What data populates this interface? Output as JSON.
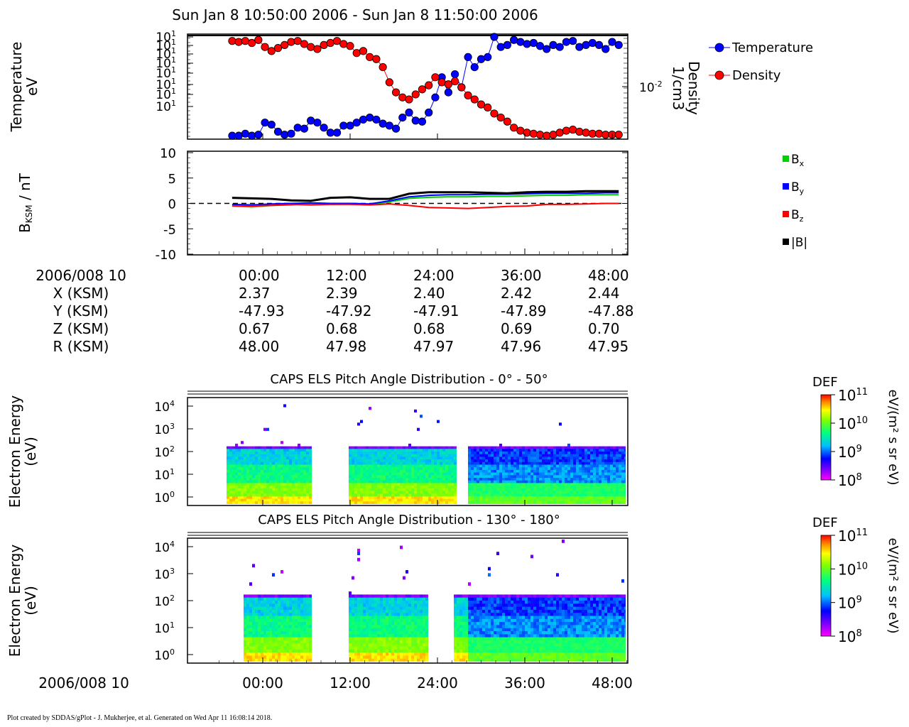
{
  "header": {
    "title": "Sun Jan 8 10:50:00 2006 - Sun Jan 8 11:50:00 2006"
  },
  "footer": {
    "text": "Plot created by SDDAS/gPlot - J. Mukherjee, et al.  Generated on Wed Apr 11 16:08:14 2018."
  },
  "chart_data": [
    {
      "id": "temperature_density",
      "type": "scatter",
      "ylabel": [
        "Temperature",
        "eV"
      ],
      "ylabel_right": [
        "Density",
        "1/cm3"
      ],
      "left_tick_labels": [
        "10",
        "10",
        "10",
        "10",
        "10",
        "10",
        "10",
        "10"
      ],
      "left_tick_exponent": "1",
      "right_tick_label": {
        "base": "10",
        "exp": "-2"
      },
      "legend": [
        {
          "label": "Temperature",
          "color": "#0000ff"
        },
        {
          "label": "Density",
          "color": "#ff0000"
        }
      ],
      "ylim": [
        0,
        100
      ],
      "x": [
        -4.2,
        -3.3,
        -2.4,
        -1.5,
        -0.6,
        0.3,
        1.2,
        2.1,
        3.0,
        3.9,
        4.8,
        5.7,
        6.6,
        7.5,
        8.4,
        9.3,
        10.2,
        11.1,
        12.0,
        12.9,
        13.8,
        14.7,
        15.6,
        16.5,
        17.4,
        18.3,
        19.2,
        20.1,
        21.0,
        21.9,
        22.8,
        23.7,
        24.6,
        25.5,
        26.4,
        27.3,
        28.2,
        29.1,
        30.0,
        30.9,
        31.8,
        32.7,
        33.6,
        34.5,
        35.4,
        36.3,
        37.2,
        38.1,
        39.0,
        39.9,
        40.8,
        41.7,
        42.6,
        43.5,
        44.4,
        45.3,
        46.2,
        47.1,
        48.0,
        48.9
      ],
      "series": [
        {
          "name": "Temperature",
          "color": "#0000ff",
          "values": [
            2,
            2,
            4,
            2,
            3,
            15,
            13,
            6,
            3,
            4,
            10,
            9,
            17,
            15,
            10,
            5,
            5,
            12,
            12,
            15,
            18,
            20,
            18,
            14,
            12,
            9,
            20,
            25,
            17,
            16,
            25,
            40,
            60,
            45,
            63,
            50,
            80,
            70,
            78,
            80,
            100,
            90,
            92,
            97,
            95,
            93,
            94,
            91,
            88,
            92,
            90,
            95,
            96,
            90,
            92,
            94,
            92,
            88,
            95,
            92
          ]
        },
        {
          "name": "Density",
          "color": "#ff0000",
          "values": [
            96,
            95,
            96,
            94,
            97,
            90,
            86,
            89,
            92,
            95,
            96,
            93,
            90,
            88,
            92,
            94,
            96,
            93,
            91,
            84,
            86,
            80,
            78,
            70,
            55,
            45,
            40,
            38,
            43,
            48,
            52,
            60,
            55,
            53,
            56,
            50,
            42,
            38,
            33,
            30,
            24,
            20,
            16,
            10,
            7,
            5,
            4,
            3,
            2,
            3,
            5,
            7,
            8,
            6,
            5,
            4,
            4,
            3,
            3,
            3
          ]
        }
      ]
    },
    {
      "id": "magnetic_field",
      "type": "line",
      "ylabel": "B",
      "ylabel_sub": "KSM",
      "ylabel_unit": " / nT",
      "ylim": [
        -10,
        10
      ],
      "yticks": [
        "10",
        "5",
        "0",
        "-5",
        "-10"
      ],
      "ytick_values": [
        10,
        5,
        0,
        -5,
        -10
      ],
      "x": [
        -4.2,
        -1.5,
        1.2,
        3.9,
        6.6,
        9.3,
        12.0,
        14.7,
        17.4,
        20.1,
        22.8,
        25.5,
        28.2,
        30.9,
        33.6,
        36.3,
        39.0,
        41.7,
        44.4,
        47.1,
        48.9
      ],
      "series": [
        {
          "name": "Bx",
          "label_main": "B",
          "label_sub": "x",
          "color": "#00d000",
          "values": [
            -0.5,
            -0.7,
            -0.4,
            -0.3,
            0,
            -0.2,
            -0.1,
            -0.3,
            0.3,
            1.0,
            1.2,
            1.3,
            1.3,
            1.4,
            1.4,
            1.5,
            1.6,
            1.6,
            1.7,
            1.7,
            1.7
          ]
        },
        {
          "name": "By",
          "label_main": "B",
          "label_sub": "y",
          "color": "#0000ff",
          "values": [
            -0.2,
            -0.3,
            -0.1,
            0,
            0.1,
            0,
            0,
            -0.1,
            0.5,
            1.3,
            1.6,
            1.7,
            1.7,
            1.8,
            1.8,
            1.9,
            2.0,
            2.0,
            2.0,
            2.1,
            2.1
          ]
        },
        {
          "name": "Bz",
          "label_main": "B",
          "label_sub": "z",
          "color": "#ff0000",
          "values": [
            -0.5,
            -0.5,
            -0.4,
            -0.2,
            -0.3,
            -0.2,
            -0.2,
            -0.3,
            -0.1,
            -0.4,
            -0.8,
            -0.9,
            -1.0,
            -0.8,
            -0.6,
            -0.5,
            -0.2,
            -0.2,
            -0.1,
            0,
            0
          ]
        },
        {
          "name": "|B|",
          "label_main": "|B|",
          "label_sub": "",
          "color": "#000000",
          "values": [
            1.1,
            1.0,
            0.9,
            0.6,
            0.5,
            1.1,
            1.2,
            0.9,
            0.9,
            1.9,
            2.2,
            2.2,
            2.2,
            2.1,
            2.0,
            2.2,
            2.3,
            2.3,
            2.4,
            2.4,
            2.4
          ]
        }
      ],
      "zero_line": true
    },
    {
      "id": "ephemeris",
      "type": "table",
      "date_label": "2006/008 10",
      "columns": [
        "00:00",
        "12:00",
        "24:00",
        "36:00",
        "48:00"
      ],
      "rows": [
        {
          "label": "X (KSM)",
          "values": [
            "2.37",
            "2.39",
            "2.40",
            "2.42",
            "2.44"
          ]
        },
        {
          "label": "Y (KSM)",
          "values": [
            "-47.93",
            "-47.92",
            "-47.91",
            "-47.89",
            "-47.88"
          ]
        },
        {
          "label": "Z (KSM)",
          "values": [
            "0.67",
            "0.68",
            "0.68",
            "0.69",
            "0.70"
          ]
        },
        {
          "label": "R (KSM)",
          "values": [
            "48.00",
            "47.98",
            "47.97",
            "47.96",
            "47.95"
          ]
        }
      ]
    },
    {
      "id": "els_pad_low",
      "type": "heatmap",
      "title": "CAPS ELS Pitch Angle Distribution - 0° - 50°",
      "ylabel": [
        "Electron Energy",
        "(eV)"
      ],
      "y_tick_exponents": [
        "4",
        "3",
        "2",
        "1",
        "0"
      ],
      "colorbar": {
        "title": "DEF",
        "unit": "eV/(m² s sr eV)",
        "tick_exponents": [
          "11",
          "10",
          "9",
          "8"
        ]
      },
      "data_gaps": [
        [
          6.5,
          11.5
        ],
        [
          26.3,
          28.0
        ]
      ]
    },
    {
      "id": "els_pad_high",
      "type": "heatmap",
      "title": "CAPS ELS Pitch Angle Distribution - 130° - 180°",
      "ylabel": [
        "Electron Energy",
        "(eV)"
      ],
      "y_tick_exponents": [
        "4",
        "3",
        "2",
        "1",
        "0"
      ],
      "colorbar": {
        "title": "DEF",
        "unit": "eV/(m² s sr eV)",
        "tick_exponents": [
          "11",
          "10",
          "9",
          "8"
        ]
      },
      "data_gaps": [
        [
          -5.0,
          -3.0
        ],
        [
          6.5,
          11.5
        ],
        [
          22.5,
          26.0
        ]
      ]
    },
    {
      "id": "bottom_axis",
      "type": "table",
      "date_label": "2006/008 10",
      "columns": [
        "00:00",
        "12:00",
        "24:00",
        "36:00",
        "48:00"
      ]
    }
  ]
}
